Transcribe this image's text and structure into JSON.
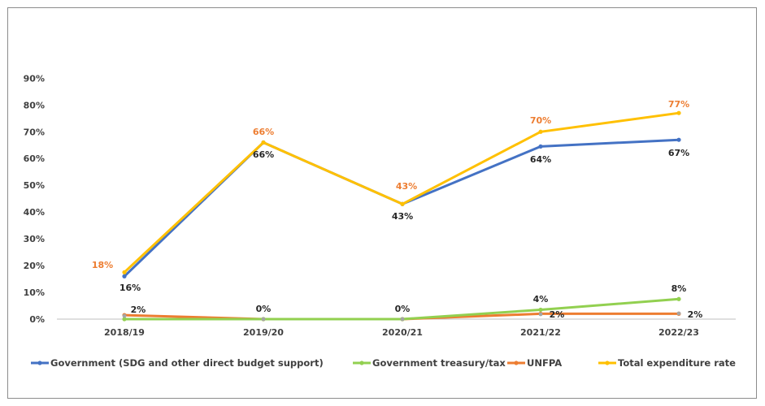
{
  "chart_data": {
    "type": "line",
    "categories": [
      "2018/19",
      "2019/20",
      "2020/21",
      "2021/22",
      "2022/23"
    ],
    "y_ticks": [
      "0%",
      "10%",
      "20%",
      "30%",
      "40%",
      "50%",
      "60%",
      "70%",
      "80%",
      "90%"
    ],
    "ylim": [
      0,
      90
    ],
    "grid": false,
    "legend_position": "bottom",
    "series": [
      {
        "name": "Government (SDG and other direct budget support)",
        "color": "#4472c4",
        "values": [
          16,
          66,
          43,
          64.5,
          67
        ],
        "labels": [
          "16%",
          "66%",
          "43%",
          "64%",
          "67%"
        ],
        "label_color": "#262626"
      },
      {
        "name": "Government treasury/tax",
        "color": "#92d050",
        "values": [
          0,
          0,
          0,
          3.5,
          7.5
        ],
        "labels": [
          "",
          "",
          "",
          "4%",
          "8%"
        ],
        "label_color": "#262626"
      },
      {
        "name": "UNFPA",
        "color": "#ed7d31",
        "values": [
          1.5,
          0,
          0,
          2,
          2
        ],
        "labels": [
          "2%",
          "0%",
          "0%",
          "2%",
          "2%"
        ],
        "label_color": "#262626"
      },
      {
        "name": "Total expenditure rate",
        "color": "#ffc000",
        "values": [
          17.5,
          66,
          43,
          70,
          77
        ],
        "labels": [
          "18%",
          "66%",
          "43%",
          "70%",
          "77%"
        ],
        "label_color": "#ed7d31"
      }
    ]
  }
}
